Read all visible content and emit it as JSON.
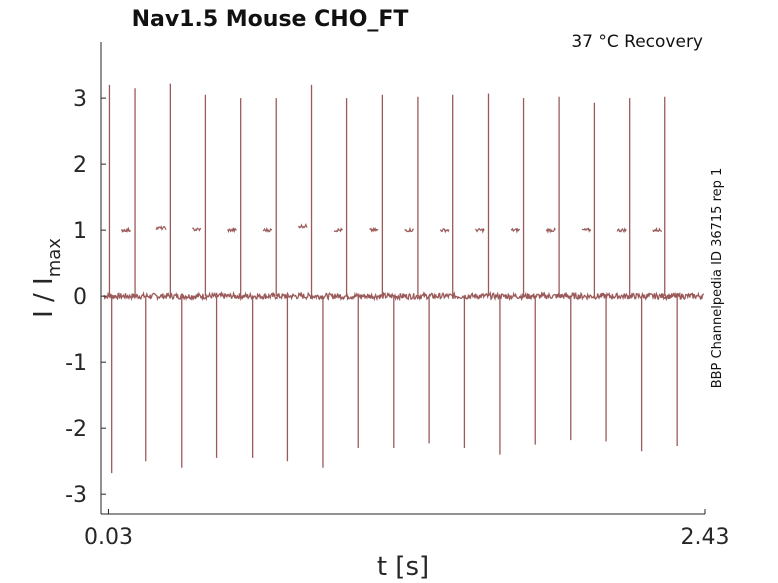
{
  "chart_data": {
    "type": "line",
    "title": "Nav1.5  Mouse  CHO_FT",
    "annotation": "37 °C  Recovery",
    "side_label": "BBP Channelpedia ID 36715 rep 1",
    "xlabel": "t [s]",
    "ylabel_main": "I / I",
    "ylabel_sub": "max",
    "xlim": [
      0.0,
      2.43
    ],
    "ylim": [
      -3.3,
      3.85
    ],
    "xticks": [
      {
        "value": 0.03,
        "label": "0.03"
      },
      {
        "value": 2.43,
        "label": "2.43"
      }
    ],
    "yticks": [
      {
        "value": 3,
        "label": "3"
      },
      {
        "value": 2,
        "label": "2"
      },
      {
        "value": 1,
        "label": "1"
      },
      {
        "value": 0,
        "label": "0"
      },
      {
        "value": -1,
        "label": "-1"
      },
      {
        "value": -2,
        "label": "-2"
      },
      {
        "value": -3,
        "label": "-3"
      }
    ],
    "grid": false,
    "colors": {
      "trace": "#9b5a5a",
      "axis": "#262626"
    },
    "series": [
      {
        "baseline": 0.0,
        "test_pulse_level": 1.0,
        "up_peaks": [
          {
            "t": 0.034,
            "peak": 3.2
          },
          {
            "t": 0.137,
            "peak": 3.15
          },
          {
            "t": 0.279,
            "peak": 3.22
          },
          {
            "t": 0.42,
            "peak": 3.05
          },
          {
            "t": 0.562,
            "peak": 3.0
          },
          {
            "t": 0.705,
            "peak": 3.0
          },
          {
            "t": 0.847,
            "peak": 3.2
          },
          {
            "t": 0.988,
            "peak": 3.0
          },
          {
            "t": 1.132,
            "peak": 3.05
          },
          {
            "t": 1.275,
            "peak": 3.02
          },
          {
            "t": 1.415,
            "peak": 3.05
          },
          {
            "t": 1.559,
            "peak": 3.07
          },
          {
            "t": 1.7,
            "peak": 3.0
          },
          {
            "t": 1.843,
            "peak": 3.02
          },
          {
            "t": 1.985,
            "peak": 2.93
          },
          {
            "t": 2.127,
            "peak": 3.0
          },
          {
            "t": 2.268,
            "peak": 3.02
          }
        ],
        "down_peaks": [
          {
            "t": 0.043,
            "peak": -2.68
          },
          {
            "t": 0.18,
            "peak": -2.5
          },
          {
            "t": 0.325,
            "peak": -2.6
          },
          {
            "t": 0.465,
            "peak": -2.45
          },
          {
            "t": 0.61,
            "peak": -2.45
          },
          {
            "t": 0.75,
            "peak": -2.5
          },
          {
            "t": 0.893,
            "peak": -2.6
          },
          {
            "t": 1.035,
            "peak": -2.3
          },
          {
            "t": 1.178,
            "peak": -2.3
          },
          {
            "t": 1.32,
            "peak": -2.23
          },
          {
            "t": 1.462,
            "peak": -2.3
          },
          {
            "t": 1.605,
            "peak": -2.4
          },
          {
            "t": 1.747,
            "peak": -2.25
          },
          {
            "t": 1.89,
            "peak": -2.18
          },
          {
            "t": 2.032,
            "peak": -2.2
          },
          {
            "t": 2.175,
            "peak": -2.35
          },
          {
            "t": 2.318,
            "peak": -2.27
          }
        ],
        "pulse_plateaus": [
          {
            "t_start": 0.083,
            "t_end": 0.12,
            "level": 1.0
          },
          {
            "t_start": 0.222,
            "t_end": 0.262,
            "level": 1.03
          },
          {
            "t_start": 0.367,
            "t_end": 0.402,
            "level": 1.01
          },
          {
            "t_start": 0.51,
            "t_end": 0.545,
            "level": 1.0
          },
          {
            "t_start": 0.652,
            "t_end": 0.688,
            "level": 1.0
          },
          {
            "t_start": 0.795,
            "t_end": 0.83,
            "level": 1.06
          },
          {
            "t_start": 0.937,
            "t_end": 0.972,
            "level": 1.0
          },
          {
            "t_start": 1.08,
            "t_end": 1.115,
            "level": 1.0
          },
          {
            "t_start": 1.222,
            "t_end": 1.258,
            "level": 1.0
          },
          {
            "t_start": 1.364,
            "t_end": 1.4,
            "level": 1.0
          },
          {
            "t_start": 1.507,
            "t_end": 1.542,
            "level": 1.0
          },
          {
            "t_start": 1.65,
            "t_end": 1.685,
            "level": 1.0
          },
          {
            "t_start": 1.792,
            "t_end": 1.828,
            "level": 1.0
          },
          {
            "t_start": 1.935,
            "t_end": 1.97,
            "level": 1.0
          },
          {
            "t_start": 2.077,
            "t_end": 2.113,
            "level": 1.0
          },
          {
            "t_start": 2.22,
            "t_end": 2.255,
            "level": 1.0
          }
        ]
      }
    ]
  }
}
